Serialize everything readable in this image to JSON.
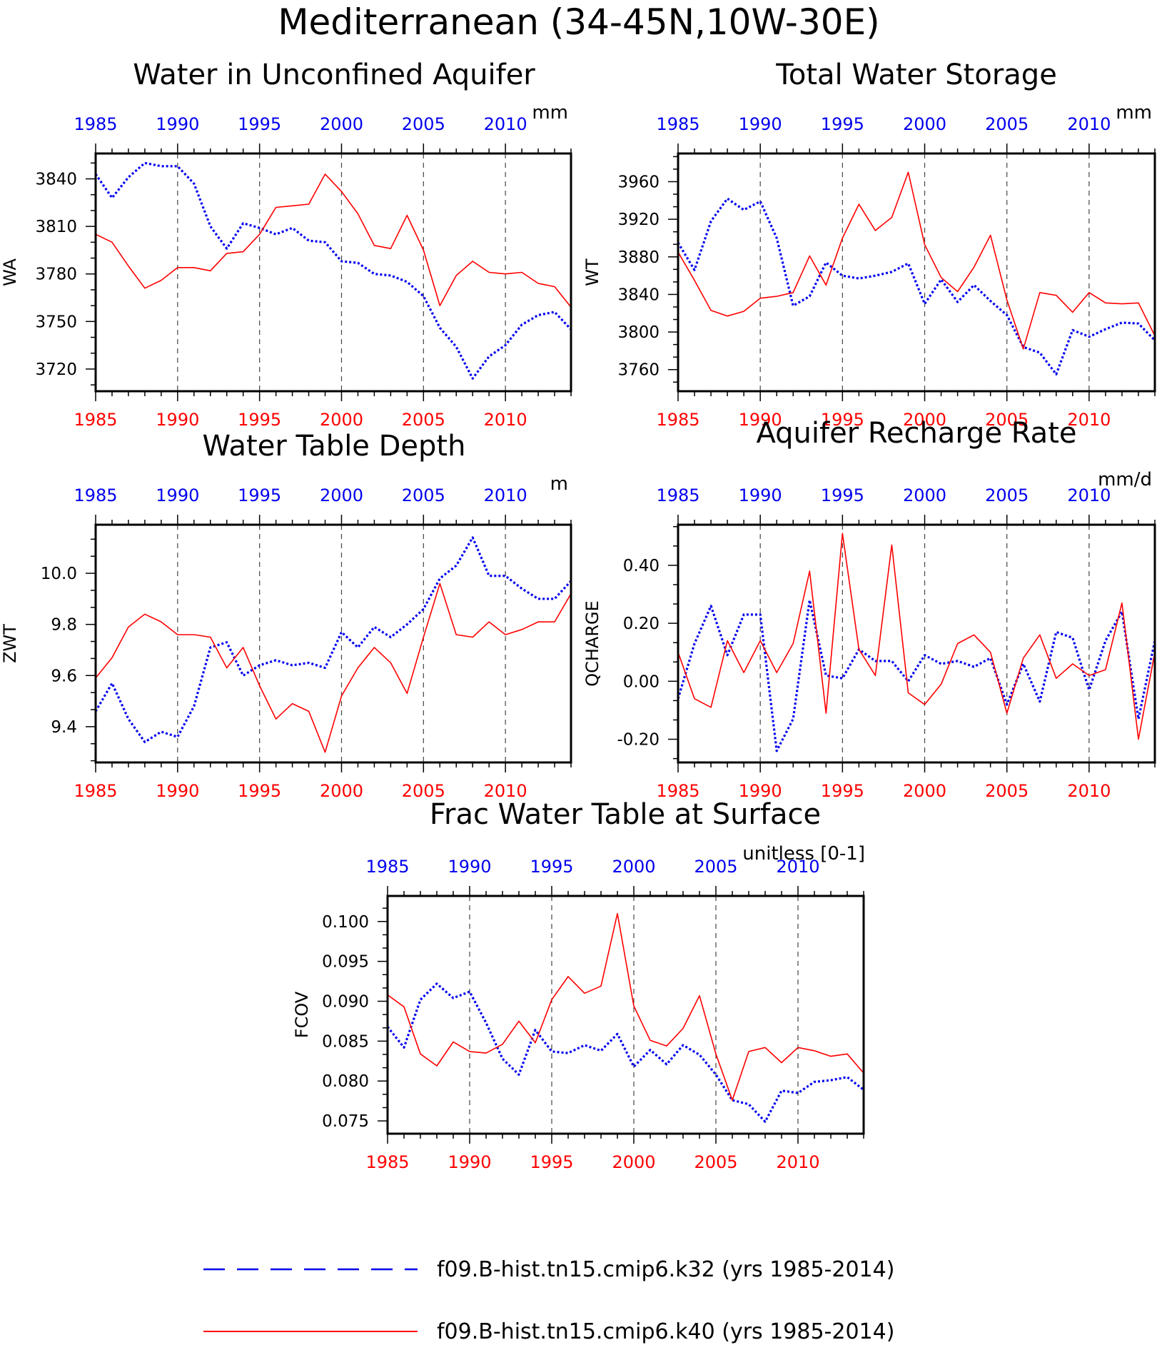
{
  "figure_title": "Mediterranean (34-45N,10W-30E)",
  "colors": {
    "series_a": "#0000ee",
    "series_b": "#ff0000",
    "top_axis_labels": "#0000ee",
    "bottom_axis_labels": "#ff0000",
    "frame": "#000000"
  },
  "legend": {
    "series_a_label": "f09.B-hist.tn15.cmip6.k32 (yrs 1985-2014)",
    "series_b_label": "f09.B-hist.tn15.cmip6.k40 (yrs 1985-2014)",
    "series_a_style": "dashed",
    "series_b_style": "solid"
  },
  "chart_data": [
    {
      "type": "line",
      "title": "Water in Unconfined Aquifer",
      "units": "mm",
      "ylabel": "WA",
      "xlim": [
        1985,
        2014
      ],
      "ylim": [
        3706,
        3856
      ],
      "xticks": [
        1985,
        1990,
        1995,
        2000,
        2005,
        2010
      ],
      "yticks": [
        3720,
        3750,
        3780,
        3810,
        3840
      ],
      "ytick_labels": [
        "3720",
        "3750",
        "3780",
        "3810",
        "3840"
      ],
      "grid": "dashed vertical lines at labeled years",
      "x": [
        1985,
        1986,
        1987,
        1988,
        1989,
        1990,
        1991,
        1992,
        1993,
        1994,
        1995,
        1996,
        1997,
        1998,
        1999,
        2000,
        2001,
        2002,
        2003,
        2004,
        2005,
        2006,
        2007,
        2008,
        2009,
        2010,
        2011,
        2012,
        2013,
        2014
      ],
      "series": [
        {
          "name": "f09.B-hist.tn15.cmip6.k32 (yrs 1985-2014)",
          "values": [
            3843,
            3828,
            3841,
            3850,
            3848,
            3848,
            3837,
            3810,
            3796,
            3812,
            3809,
            3805,
            3809,
            3801,
            3800,
            3788,
            3787,
            3780,
            3779,
            3775,
            3766,
            3746,
            3734,
            3714,
            3728,
            3735,
            3748,
            3754,
            3756,
            3745
          ]
        },
        {
          "name": "f09.B-hist.tn15.cmip6.k40 (yrs 1985-2014)",
          "values": [
            3805,
            3800,
            3785,
            3771,
            3776,
            3784,
            3784,
            3782,
            3793,
            3794,
            3805,
            3822,
            3823,
            3824,
            3843,
            3832,
            3818,
            3798,
            3796,
            3817,
            3795,
            3760,
            3779,
            3788,
            3781,
            3780,
            3781,
            3774,
            3772,
            3759
          ]
        }
      ]
    },
    {
      "type": "line",
      "title": "Total Water Storage",
      "units": "mm",
      "ylabel": "WT",
      "xlim": [
        1985,
        2014
      ],
      "ylim": [
        3737,
        3990
      ],
      "xticks": [
        1985,
        1990,
        1995,
        2000,
        2005,
        2010
      ],
      "yticks": [
        3760,
        3800,
        3840,
        3880,
        3920,
        3960
      ],
      "ytick_labels": [
        "3760",
        "3800",
        "3840",
        "3880",
        "3920",
        "3960"
      ],
      "grid": "dashed vertical lines at labeled years",
      "x": [
        1985,
        1986,
        1987,
        1988,
        1989,
        1990,
        1991,
        1992,
        1993,
        1994,
        1995,
        1996,
        1997,
        1998,
        1999,
        2000,
        2001,
        2002,
        2003,
        2004,
        2005,
        2006,
        2007,
        2008,
        2009,
        2010,
        2011,
        2012,
        2013,
        2014
      ],
      "series": [
        {
          "name": "f09.B-hist.tn15.cmip6.k32 (yrs 1985-2014)",
          "values": [
            3895,
            3866,
            3918,
            3942,
            3930,
            3939,
            3900,
            3828,
            3838,
            3874,
            3860,
            3857,
            3860,
            3864,
            3873,
            3830,
            3856,
            3832,
            3850,
            3833,
            3818,
            3784,
            3778,
            3755,
            3802,
            3795,
            3803,
            3810,
            3809,
            3791
          ]
        },
        {
          "name": "f09.B-hist.tn15.cmip6.k40 (yrs 1985-2014)",
          "values": [
            3885,
            3855,
            3823,
            3817,
            3822,
            3836,
            3838,
            3842,
            3881,
            3850,
            3900,
            3936,
            3908,
            3922,
            3970,
            3893,
            3858,
            3843,
            3869,
            3903,
            3834,
            3782,
            3842,
            3839,
            3821,
            3842,
            3831,
            3830,
            3831,
            3796
          ]
        }
      ]
    },
    {
      "type": "line",
      "title": "Water Table Depth",
      "units": "m",
      "ylabel": "ZWT",
      "xlim": [
        1985,
        2014
      ],
      "ylim": [
        9.26,
        10.19
      ],
      "xticks": [
        1985,
        1990,
        1995,
        2000,
        2005,
        2010
      ],
      "yticks": [
        9.4,
        9.6,
        9.8,
        10.0
      ],
      "ytick_labels": [
        "9.4",
        "9.6",
        "9.8",
        "10.0"
      ],
      "grid": "dashed vertical lines at labeled years",
      "x": [
        1985,
        1986,
        1987,
        1988,
        1989,
        1990,
        1991,
        1992,
        1993,
        1994,
        1995,
        1996,
        1997,
        1998,
        1999,
        2000,
        2001,
        2002,
        2003,
        2004,
        2005,
        2006,
        2007,
        2008,
        2009,
        2010,
        2011,
        2012,
        2013,
        2014
      ],
      "series": [
        {
          "name": "f09.B-hist.tn15.cmip6.k32 (yrs 1985-2014)",
          "values": [
            9.46,
            9.57,
            9.43,
            9.34,
            9.38,
            9.36,
            9.48,
            9.71,
            9.73,
            9.6,
            9.64,
            9.66,
            9.64,
            9.65,
            9.63,
            9.77,
            9.71,
            9.79,
            9.75,
            9.8,
            9.86,
            9.98,
            10.03,
            10.14,
            9.99,
            9.99,
            9.94,
            9.9,
            9.9,
            9.97
          ]
        },
        {
          "name": "f09.B-hist.tn15.cmip6.k40 (yrs 1985-2014)",
          "values": [
            9.59,
            9.67,
            9.79,
            9.84,
            9.81,
            9.76,
            9.76,
            9.75,
            9.63,
            9.71,
            9.56,
            9.43,
            9.49,
            9.46,
            9.3,
            9.52,
            9.63,
            9.71,
            9.65,
            9.53,
            9.75,
            9.96,
            9.76,
            9.75,
            9.81,
            9.76,
            9.78,
            9.81,
            9.81,
            9.92
          ]
        }
      ]
    },
    {
      "type": "line",
      "title": "Aquifer Recharge Rate",
      "units": "mm/d",
      "ylabel": "QCHARGE",
      "xlim": [
        1985,
        2014
      ],
      "ylim": [
        -0.28,
        0.54
      ],
      "xticks": [
        1985,
        1990,
        1995,
        2000,
        2005,
        2010
      ],
      "yticks": [
        -0.2,
        0.0,
        0.2,
        0.4
      ],
      "ytick_labels": [
        "-0.20",
        "0.00",
        "0.20",
        "0.40"
      ],
      "grid": "dashed vertical lines at labeled years",
      "x": [
        1985,
        1986,
        1987,
        1988,
        1989,
        1990,
        1991,
        1992,
        1993,
        1994,
        1995,
        1996,
        1997,
        1998,
        1999,
        2000,
        2001,
        2002,
        2003,
        2004,
        2005,
        2006,
        2007,
        2008,
        2009,
        2010,
        2011,
        2012,
        2013,
        2014
      ],
      "series": [
        {
          "name": "f09.B-hist.tn15.cmip6.k32 (yrs 1985-2014)",
          "values": [
            -0.06,
            0.13,
            0.26,
            0.09,
            0.23,
            0.23,
            -0.24,
            -0.13,
            0.28,
            0.02,
            0.01,
            0.11,
            0.07,
            0.07,
            0.0,
            0.09,
            0.06,
            0.07,
            0.05,
            0.08,
            -0.08,
            0.06,
            -0.07,
            0.17,
            0.15,
            -0.03,
            0.14,
            0.24,
            -0.13,
            0.14
          ]
        },
        {
          "name": "f09.B-hist.tn15.cmip6.k40 (yrs 1985-2014)",
          "values": [
            0.1,
            -0.06,
            -0.09,
            0.14,
            0.03,
            0.14,
            0.03,
            0.13,
            0.38,
            -0.11,
            0.51,
            0.11,
            0.02,
            0.47,
            -0.04,
            -0.08,
            -0.01,
            0.13,
            0.16,
            0.1,
            -0.11,
            0.08,
            0.16,
            0.01,
            0.06,
            0.02,
            0.04,
            0.27,
            -0.2,
            0.1
          ]
        }
      ]
    },
    {
      "type": "line",
      "title": "Frac Water Table at Surface",
      "units": "unitless [0-1]",
      "ylabel": "FCOV",
      "xlim": [
        1985,
        2014
      ],
      "ylim": [
        0.0734,
        0.1032
      ],
      "xticks": [
        1985,
        1990,
        1995,
        2000,
        2005,
        2010
      ],
      "yticks": [
        0.075,
        0.08,
        0.085,
        0.09,
        0.095,
        0.1
      ],
      "ytick_labels": [
        "0.075",
        "0.080",
        "0.085",
        "0.090",
        "0.095",
        "0.100"
      ],
      "grid": "dashed vertical lines at labeled years",
      "x": [
        1985,
        1986,
        1987,
        1988,
        1989,
        1990,
        1991,
        1992,
        1993,
        1994,
        1995,
        1996,
        1997,
        1998,
        1999,
        2000,
        2001,
        2002,
        2003,
        2004,
        2005,
        2006,
        2007,
        2008,
        2009,
        2010,
        2011,
        2012,
        2013,
        2014
      ],
      "series": [
        {
          "name": "f09.B-hist.tn15.cmip6.k32 (yrs 1985-2014)",
          "values": [
            0.0868,
            0.0842,
            0.0902,
            0.0922,
            0.0904,
            0.0912,
            0.0873,
            0.0828,
            0.0808,
            0.0864,
            0.0837,
            0.0835,
            0.0845,
            0.0838,
            0.0859,
            0.0818,
            0.0839,
            0.0821,
            0.0845,
            0.0833,
            0.0808,
            0.0776,
            0.0771,
            0.0749,
            0.0788,
            0.0785,
            0.0799,
            0.0801,
            0.0805,
            0.0789
          ]
        },
        {
          "name": "f09.B-hist.tn15.cmip6.k40 (yrs 1985-2014)",
          "values": [
            0.0908,
            0.0893,
            0.0834,
            0.0819,
            0.0849,
            0.0837,
            0.0835,
            0.0846,
            0.0875,
            0.0848,
            0.0902,
            0.0931,
            0.091,
            0.0919,
            0.101,
            0.0894,
            0.0851,
            0.0844,
            0.0866,
            0.0907,
            0.0834,
            0.0776,
            0.0837,
            0.0842,
            0.0823,
            0.0842,
            0.0838,
            0.0831,
            0.0834,
            0.081
          ]
        }
      ]
    }
  ]
}
